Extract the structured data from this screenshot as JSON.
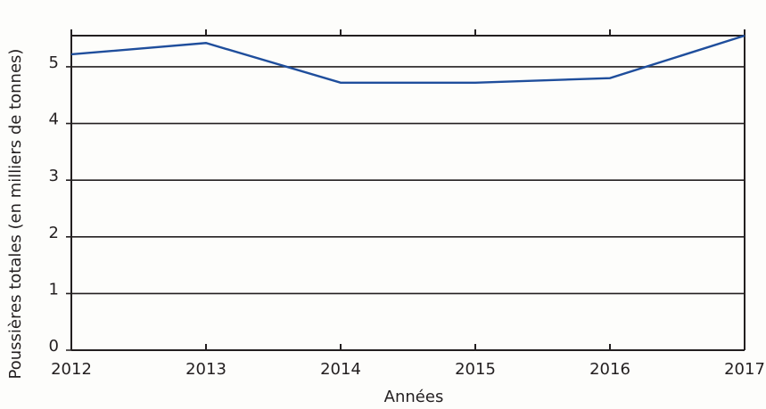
{
  "chart_data": {
    "type": "line",
    "x_label": "Années",
    "y_label": "Poussières totales (en milliers de tonnes)",
    "x": [
      2012,
      2013,
      2014,
      2015,
      2016,
      2017
    ],
    "series": [
      {
        "name": "Poussières totales",
        "color": "#1f4e9c",
        "values": [
          5.22,
          5.42,
          4.72,
          4.72,
          4.8,
          5.55
        ]
      }
    ],
    "xlim": [
      2012,
      2017
    ],
    "xticks": [
      2012,
      2013,
      2014,
      2015,
      2016,
      2017
    ],
    "ylim": [
      0,
      5.55
    ],
    "yticks": [
      0,
      1,
      2,
      3,
      4,
      5
    ],
    "grid": true
  }
}
